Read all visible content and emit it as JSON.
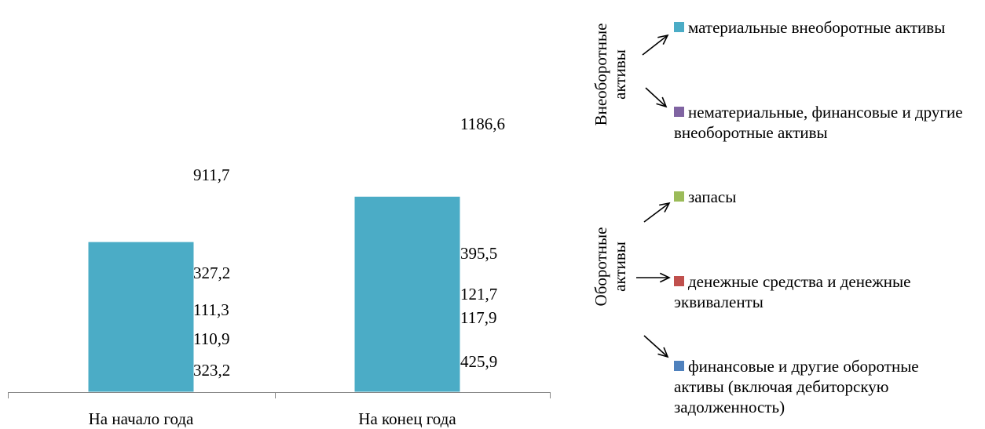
{
  "chart_data": {
    "type": "bar",
    "stacked": true,
    "categories": [
      "На начало года",
      "На конец года"
    ],
    "series": [
      {
        "name": "финансовые и другие оборотные активы (включая дебиторскую задолженность)",
        "values": [
          323.2,
          425.9
        ],
        "labels": [
          "323,2",
          "425,9"
        ],
        "color": "#4f81bd"
      },
      {
        "name": "денежные средства и денежные эквиваленты",
        "values": [
          110.9,
          117.9
        ],
        "labels": [
          "110,9",
          "117,9"
        ],
        "color": "#c0504d"
      },
      {
        "name": "запасы",
        "values": [
          111.3,
          121.7
        ],
        "labels": [
          "111,3",
          "121,7"
        ],
        "color": "#9bbb59"
      },
      {
        "name": "нематериальные, финансовые и другие внеоборотные активы",
        "values": [
          327.2,
          395.5
        ],
        "labels": [
          "327,2",
          "395,5"
        ],
        "color": "#8064a2"
      },
      {
        "name": "материальные внеоборотные активы",
        "values": [
          911.7,
          1186.6
        ],
        "labels": [
          "911,7",
          "1186,6"
        ],
        "color": "#4bacc6"
      }
    ],
    "legend_groups": [
      {
        "title": "Внеоборотные активы",
        "items": [
          4,
          3
        ]
      },
      {
        "title": "Оборотные активы",
        "items": [
          2,
          1,
          0
        ]
      }
    ],
    "legend_placement": "right",
    "grid": false
  }
}
